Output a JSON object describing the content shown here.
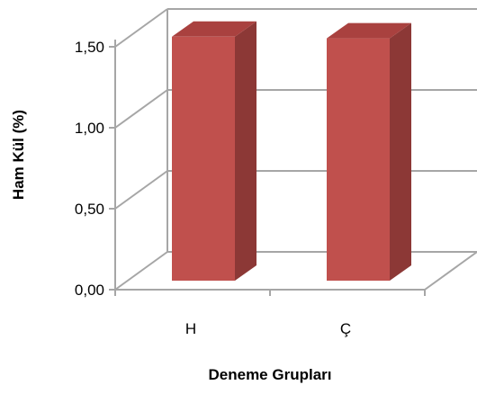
{
  "chart_data": {
    "type": "bar",
    "categories": [
      "H",
      "Ç"
    ],
    "values": [
      1.54,
      1.53
    ],
    "xlabel": "Deneme Grupları",
    "ylabel": "Ham Kül (%)",
    "ylim": [
      0,
      1.5
    ],
    "ticks": [
      "0,00",
      "0,50",
      "1,00",
      "1,50"
    ],
    "grid": true,
    "colors": {
      "bar_front": "#C0504D",
      "bar_side": "#8C3836",
      "bar_top": "#A9413F",
      "grid": "#A6A6A6"
    }
  }
}
